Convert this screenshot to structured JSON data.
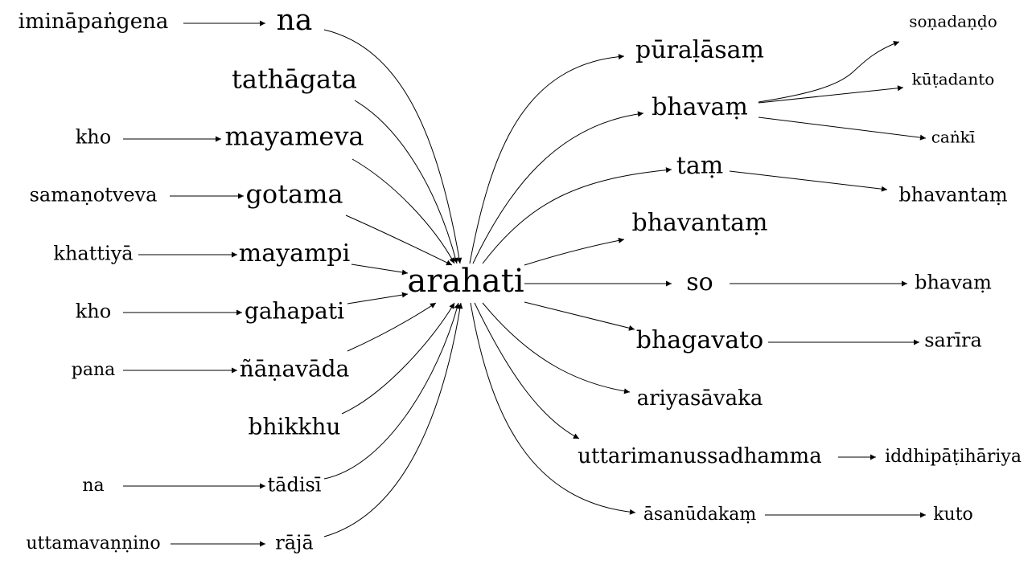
{
  "graph": {
    "center": "arahati",
    "nodes": {
      "arahati": "arahati",
      "na_top": "na",
      "iminapangena": "imināpaṅgena",
      "tathagata": "tathāgata",
      "mayameva": "mayameva",
      "kho1": "kho",
      "gotama": "gotama",
      "samanotveva": "samaṇotveva",
      "mayampi": "mayampi",
      "khattiya": "khattiyā",
      "gahapati": "gahapati",
      "kho2": "kho",
      "nanavada": "ñāṇavāda",
      "pana": "pana",
      "bhikkhu": "bhikkhu",
      "tadisi": "tādisī",
      "na_bottom": "na",
      "raja": "rājā",
      "uttamavannino": "uttamavaṇṇino",
      "puralasam": "pūraḷāsaṃ",
      "bhavam1": "bhavaṃ",
      "sonadando": "soṇadaṇḍo",
      "kutadanto": "kūṭadanto",
      "canki": "caṅkī",
      "tam": "taṃ",
      "bhavantam_a": "bhavantaṃ",
      "bhavantam_b": "bhavantaṃ",
      "so": "so",
      "bhavam2": "bhavaṃ",
      "bhagavato": "bhagavato",
      "sarira": "sarīra",
      "ariyasavaka": "ariyasāvaka",
      "uttarimanussadhamma": "uttarimanussadhamma",
      "iddhipatihariya": "iddhipāṭihāriya",
      "asanudakam": "āsanūdakaṃ",
      "kuto": "kuto"
    },
    "edges": [
      [
        "iminapangena",
        "na_top"
      ],
      [
        "na_top",
        "arahati"
      ],
      [
        "tathagata",
        "arahati"
      ],
      [
        "kho1",
        "mayameva"
      ],
      [
        "mayameva",
        "arahati"
      ],
      [
        "samanotveva",
        "gotama"
      ],
      [
        "gotama",
        "arahati"
      ],
      [
        "khattiya",
        "mayampi"
      ],
      [
        "mayampi",
        "arahati"
      ],
      [
        "kho2",
        "gahapati"
      ],
      [
        "gahapati",
        "arahati"
      ],
      [
        "pana",
        "nanavada"
      ],
      [
        "nanavada",
        "arahati"
      ],
      [
        "bhikkhu",
        "arahati"
      ],
      [
        "na_bottom",
        "tadisi"
      ],
      [
        "tadisi",
        "arahati"
      ],
      [
        "uttamavannino",
        "raja"
      ],
      [
        "raja",
        "arahati"
      ],
      [
        "arahati",
        "puralasam"
      ],
      [
        "arahati",
        "bhavam1"
      ],
      [
        "bhavam1",
        "sonadando"
      ],
      [
        "bhavam1",
        "kutadanto"
      ],
      [
        "bhavam1",
        "canki"
      ],
      [
        "arahati",
        "tam"
      ],
      [
        "tam",
        "bhavantam_b"
      ],
      [
        "arahati",
        "bhavantam_a"
      ],
      [
        "arahati",
        "so"
      ],
      [
        "so",
        "bhavam2"
      ],
      [
        "arahati",
        "bhagavato"
      ],
      [
        "bhagavato",
        "sarira"
      ],
      [
        "arahati",
        "ariyasavaka"
      ],
      [
        "arahati",
        "uttarimanussadhamma"
      ],
      [
        "uttarimanussadhamma",
        "iddhipatihariya"
      ],
      [
        "arahati",
        "asanudakam"
      ],
      [
        "asanudakam",
        "kuto"
      ]
    ]
  }
}
